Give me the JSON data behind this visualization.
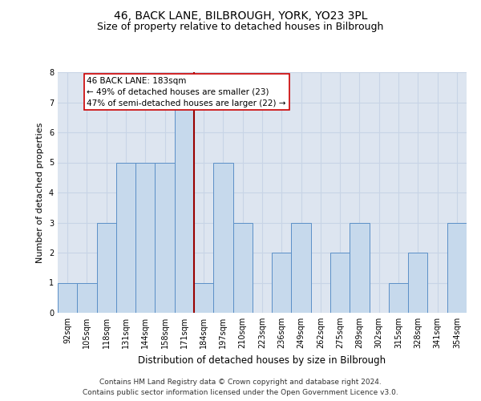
{
  "title1": "46, BACK LANE, BILBROUGH, YORK, YO23 3PL",
  "title2": "Size of property relative to detached houses in Bilbrough",
  "xlabel": "Distribution of detached houses by size in Bilbrough",
  "ylabel": "Number of detached properties",
  "categories": [
    "92sqm",
    "105sqm",
    "118sqm",
    "131sqm",
    "144sqm",
    "158sqm",
    "171sqm",
    "184sqm",
    "197sqm",
    "210sqm",
    "223sqm",
    "236sqm",
    "249sqm",
    "262sqm",
    "275sqm",
    "289sqm",
    "302sqm",
    "315sqm",
    "328sqm",
    "341sqm",
    "354sqm"
  ],
  "values": [
    1,
    1,
    3,
    5,
    5,
    5,
    7,
    1,
    5,
    3,
    0,
    2,
    3,
    0,
    2,
    3,
    0,
    1,
    2,
    0,
    3
  ],
  "bar_color": "#c6d9ec",
  "bar_edge_color": "#5b8fc7",
  "vline_x_index": 6.5,
  "annotation_text_line1": "46 BACK LANE: 183sqm",
  "annotation_text_line2": "← 49% of detached houses are smaller (23)",
  "annotation_text_line3": "47% of semi-detached houses are larger (22) →",
  "vline_color": "#990000",
  "annotation_box_facecolor": "#ffffff",
  "annotation_box_edgecolor": "#cc0000",
  "ylim": [
    0,
    8
  ],
  "yticks": [
    0,
    1,
    2,
    3,
    4,
    5,
    6,
    7,
    8
  ],
  "grid_color": "#c8d4e6",
  "bg_color": "#dde5f0",
  "footer1": "Contains HM Land Registry data © Crown copyright and database right 2024.",
  "footer2": "Contains public sector information licensed under the Open Government Licence v3.0.",
  "title1_fontsize": 10,
  "title2_fontsize": 9,
  "ylabel_fontsize": 8,
  "xlabel_fontsize": 8.5,
  "tick_fontsize": 7,
  "annotation_fontsize": 7.5,
  "footer_fontsize": 6.5
}
